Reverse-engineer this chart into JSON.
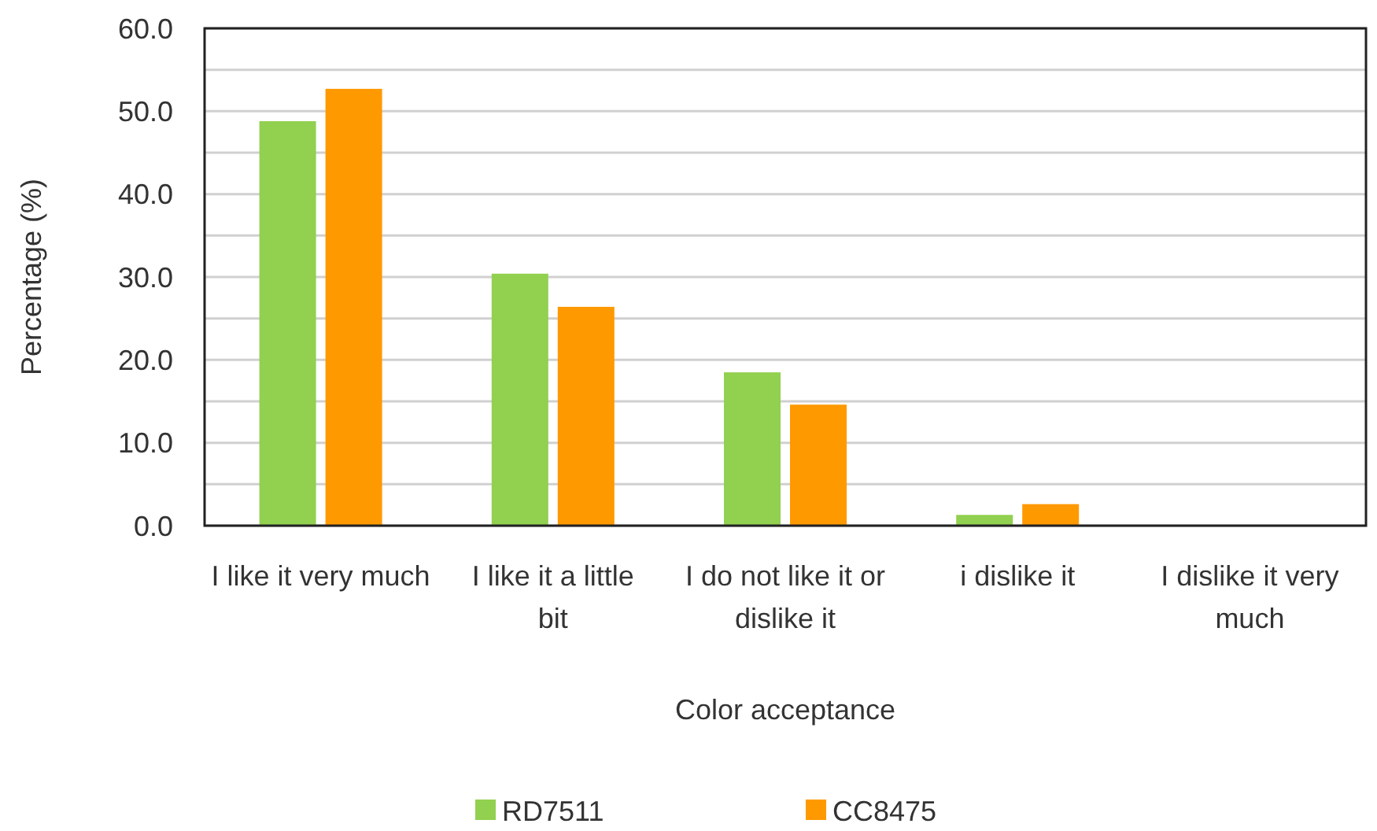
{
  "chart_data": {
    "type": "bar",
    "xlabel": "Color acceptance",
    "ylabel": "Percentage (%)",
    "categories": [
      "I like it very much",
      "I like it a little bit",
      "I do not like it or dislike it",
      "i dislike it",
      "I dislike it very much"
    ],
    "series": [
      {
        "name": "RD7511",
        "color": "#92d050",
        "values": [
          48.8,
          30.4,
          18.5,
          1.3,
          0
        ]
      },
      {
        "name": "CC8475",
        "color": "#ff9900",
        "values": [
          52.7,
          26.4,
          14.6,
          2.6,
          0
        ]
      }
    ],
    "ylim": [
      0,
      60
    ],
    "yticks": [
      {
        "value": 0,
        "label": "0.0"
      },
      {
        "value": 5,
        "label": null
      },
      {
        "value": 10,
        "label": "10.0"
      },
      {
        "value": 15,
        "label": null
      },
      {
        "value": 20,
        "label": "20.0"
      },
      {
        "value": 25,
        "label": null
      },
      {
        "value": 30,
        "label": "30.0"
      },
      {
        "value": 35,
        "label": null
      },
      {
        "value": 40,
        "label": "40.0"
      },
      {
        "value": 45,
        "label": null
      },
      {
        "value": 50,
        "label": "50.0"
      },
      {
        "value": 55,
        "label": null
      },
      {
        "value": 60,
        "label": "60.0"
      }
    ],
    "grid": true,
    "legend": "bottom"
  }
}
